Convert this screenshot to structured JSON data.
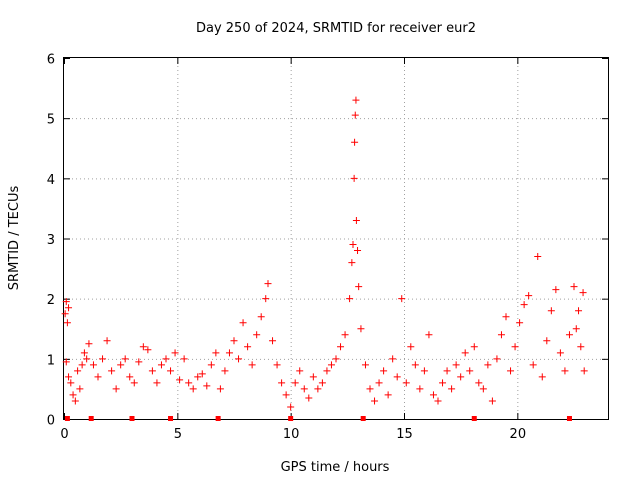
{
  "chart_data": {
    "type": "scatter",
    "title": "Day 250 of 2024, SRMTID for receiver eur2",
    "xlabel": "GPS time / hours",
    "ylabel": "SRMTID / TECUs",
    "xlim": [
      0,
      24
    ],
    "ylim": [
      0,
      6
    ],
    "x_ticks": [
      0,
      5,
      10,
      15,
      20
    ],
    "x_tick_labels": [
      "0",
      "5",
      "10",
      "15",
      "20"
    ],
    "y_ticks": [
      0,
      1,
      2,
      3,
      4,
      5,
      6
    ],
    "y_tick_labels": [
      "0",
      "1",
      "2",
      "3",
      "4",
      "5",
      "6"
    ],
    "grid": true,
    "marker": "plus",
    "color": "#ff0000",
    "series": [
      {
        "name": "SRMTID",
        "points": [
          [
            0.05,
            1.75
          ],
          [
            0.1,
            1.95
          ],
          [
            0.15,
            1.6
          ],
          [
            0.2,
            1.85
          ],
          [
            0.1,
            0.95
          ],
          [
            0.2,
            0.7
          ],
          [
            0.3,
            0.6
          ],
          [
            0.4,
            0.4
          ],
          [
            0.5,
            0.3
          ],
          [
            0.6,
            0.8
          ],
          [
            0.7,
            0.5
          ],
          [
            0.8,
            0.9
          ],
          [
            0.9,
            1.1
          ],
          [
            1.0,
            1.0
          ],
          [
            1.1,
            1.25
          ],
          [
            1.3,
            0.9
          ],
          [
            1.5,
            0.7
          ],
          [
            1.7,
            1.0
          ],
          [
            1.9,
            1.3
          ],
          [
            2.1,
            0.8
          ],
          [
            2.3,
            0.5
          ],
          [
            2.5,
            0.9
          ],
          [
            2.7,
            1.0
          ],
          [
            2.9,
            0.7
          ],
          [
            3.1,
            0.6
          ],
          [
            3.3,
            0.95
          ],
          [
            3.5,
            1.2
          ],
          [
            3.7,
            1.15
          ],
          [
            3.9,
            0.8
          ],
          [
            4.1,
            0.6
          ],
          [
            4.3,
            0.9
          ],
          [
            4.5,
            1.0
          ],
          [
            4.7,
            0.8
          ],
          [
            4.9,
            1.1
          ],
          [
            5.1,
            0.65
          ],
          [
            5.3,
            1.0
          ],
          [
            5.5,
            0.6
          ],
          [
            5.7,
            0.5
          ],
          [
            5.9,
            0.7
          ],
          [
            6.1,
            0.75
          ],
          [
            6.3,
            0.55
          ],
          [
            6.5,
            0.9
          ],
          [
            6.7,
            1.1
          ],
          [
            6.9,
            0.5
          ],
          [
            7.1,
            0.8
          ],
          [
            7.3,
            1.1
          ],
          [
            7.5,
            1.3
          ],
          [
            7.7,
            1.0
          ],
          [
            7.9,
            1.6
          ],
          [
            8.1,
            1.2
          ],
          [
            8.3,
            0.9
          ],
          [
            8.5,
            1.4
          ],
          [
            8.7,
            1.7
          ],
          [
            8.9,
            2.0
          ],
          [
            9.0,
            2.25
          ],
          [
            9.2,
            1.3
          ],
          [
            9.4,
            0.9
          ],
          [
            9.6,
            0.6
          ],
          [
            9.8,
            0.4
          ],
          [
            10.0,
            0.2
          ],
          [
            10.2,
            0.6
          ],
          [
            10.4,
            0.8
          ],
          [
            10.6,
            0.5
          ],
          [
            10.8,
            0.35
          ],
          [
            11.0,
            0.7
          ],
          [
            11.2,
            0.5
          ],
          [
            11.4,
            0.6
          ],
          [
            11.6,
            0.8
          ],
          [
            11.8,
            0.9
          ],
          [
            12.0,
            1.0
          ],
          [
            12.2,
            1.2
          ],
          [
            12.4,
            1.4
          ],
          [
            12.6,
            2.0
          ],
          [
            12.7,
            2.6
          ],
          [
            12.75,
            2.9
          ],
          [
            12.8,
            4.0
          ],
          [
            12.82,
            4.6
          ],
          [
            12.85,
            5.05
          ],
          [
            12.88,
            5.3
          ],
          [
            12.9,
            3.3
          ],
          [
            12.95,
            2.8
          ],
          [
            13.0,
            2.2
          ],
          [
            13.1,
            1.5
          ],
          [
            13.3,
            0.9
          ],
          [
            13.5,
            0.5
          ],
          [
            13.7,
            0.3
          ],
          [
            13.9,
            0.6
          ],
          [
            14.1,
            0.8
          ],
          [
            14.3,
            0.4
          ],
          [
            14.5,
            1.0
          ],
          [
            14.7,
            0.7
          ],
          [
            14.9,
            2.0
          ],
          [
            15.1,
            0.6
          ],
          [
            15.3,
            1.2
          ],
          [
            15.5,
            0.9
          ],
          [
            15.7,
            0.5
          ],
          [
            15.9,
            0.8
          ],
          [
            16.1,
            1.4
          ],
          [
            16.3,
            0.4
          ],
          [
            16.5,
            0.3
          ],
          [
            16.7,
            0.6
          ],
          [
            16.9,
            0.8
          ],
          [
            17.1,
            0.5
          ],
          [
            17.3,
            0.9
          ],
          [
            17.5,
            0.7
          ],
          [
            17.7,
            1.1
          ],
          [
            17.9,
            0.8
          ],
          [
            18.1,
            1.2
          ],
          [
            18.3,
            0.6
          ],
          [
            18.5,
            0.5
          ],
          [
            18.7,
            0.9
          ],
          [
            18.9,
            0.3
          ],
          [
            19.1,
            1.0
          ],
          [
            19.3,
            1.4
          ],
          [
            19.5,
            1.7
          ],
          [
            19.7,
            0.8
          ],
          [
            19.9,
            1.2
          ],
          [
            20.1,
            1.6
          ],
          [
            20.3,
            1.9
          ],
          [
            20.5,
            2.05
          ],
          [
            20.7,
            0.9
          ],
          [
            20.9,
            2.7
          ],
          [
            21.1,
            0.7
          ],
          [
            21.3,
            1.3
          ],
          [
            21.5,
            1.8
          ],
          [
            21.7,
            2.15
          ],
          [
            21.9,
            1.1
          ],
          [
            22.1,
            0.8
          ],
          [
            22.3,
            1.4
          ],
          [
            22.5,
            2.2
          ],
          [
            22.6,
            1.5
          ],
          [
            22.7,
            1.8
          ],
          [
            22.8,
            1.2
          ],
          [
            22.9,
            2.1
          ],
          [
            22.95,
            0.8
          ]
        ]
      }
    ],
    "rug_marks_x": [
      0.15,
      1.2,
      3.0,
      4.7,
      6.8,
      10.0,
      13.2,
      18.1,
      22.3
    ]
  }
}
